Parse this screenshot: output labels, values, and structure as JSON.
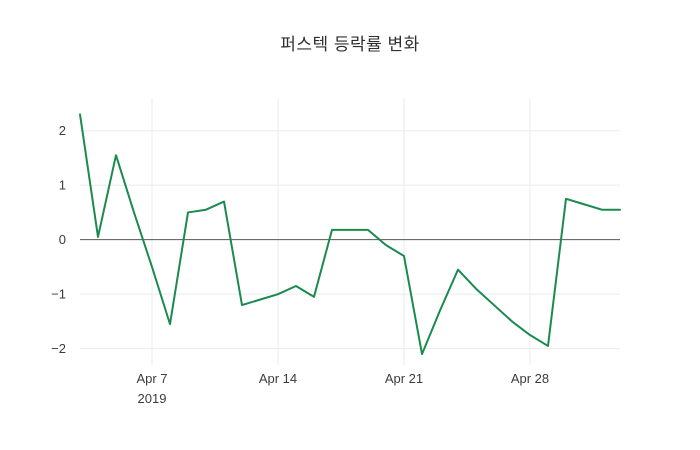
{
  "chart_data": {
    "type": "line",
    "title": "퍼스텍 등락률 변화",
    "series_name": "등락률",
    "x": [
      "Apr 3",
      "Apr 4",
      "Apr 5",
      "Apr 6",
      "Apr 7",
      "Apr 8",
      "Apr 9",
      "Apr 10",
      "Apr 11",
      "Apr 12",
      "Apr 13",
      "Apr 14",
      "Apr 15",
      "Apr 16",
      "Apr 17",
      "Apr 18",
      "Apr 19",
      "Apr 20",
      "Apr 21",
      "Apr 22",
      "Apr 23",
      "Apr 24",
      "Apr 25",
      "Apr 26",
      "Apr 27",
      "Apr 28",
      "Apr 29",
      "Apr 30",
      "May 1",
      "May 2",
      "May 3"
    ],
    "values": [
      2.3,
      0.05,
      1.55,
      0.5,
      -0.5,
      -1.55,
      0.5,
      0.55,
      0.7,
      -1.2,
      -1.1,
      -1.0,
      -0.85,
      -1.05,
      0.18,
      0.18,
      0.18,
      -0.1,
      -0.3,
      -2.1,
      -1.3,
      -0.55,
      -0.9,
      -1.2,
      -1.5,
      -1.75,
      -1.95,
      0.75,
      0.65,
      0.55,
      0.55
    ],
    "xlabel": "",
    "ylabel": "",
    "xlim": [
      0,
      30
    ],
    "ylim": [
      -2.3,
      2.6
    ],
    "xticks": [
      {
        "index": 4,
        "label": "Apr 7",
        "sublabel": "2019"
      },
      {
        "index": 11,
        "label": "Apr 14"
      },
      {
        "index": 18,
        "label": "Apr 21"
      },
      {
        "index": 25,
        "label": "Apr 28"
      }
    ],
    "yticks": [
      {
        "value": 2,
        "label": "2"
      },
      {
        "value": 1,
        "label": "1"
      },
      {
        "value": 0,
        "label": "0"
      },
      {
        "value": -1,
        "label": "−1"
      },
      {
        "value": -2,
        "label": "−2"
      }
    ],
    "grid": true,
    "legend_position": "none",
    "colors": {
      "line": "#1b8a4f",
      "grid": "#ebebeb",
      "zero_line": "#5a5a5a",
      "text": "#3c3c3c",
      "background": "#ffffff"
    }
  }
}
